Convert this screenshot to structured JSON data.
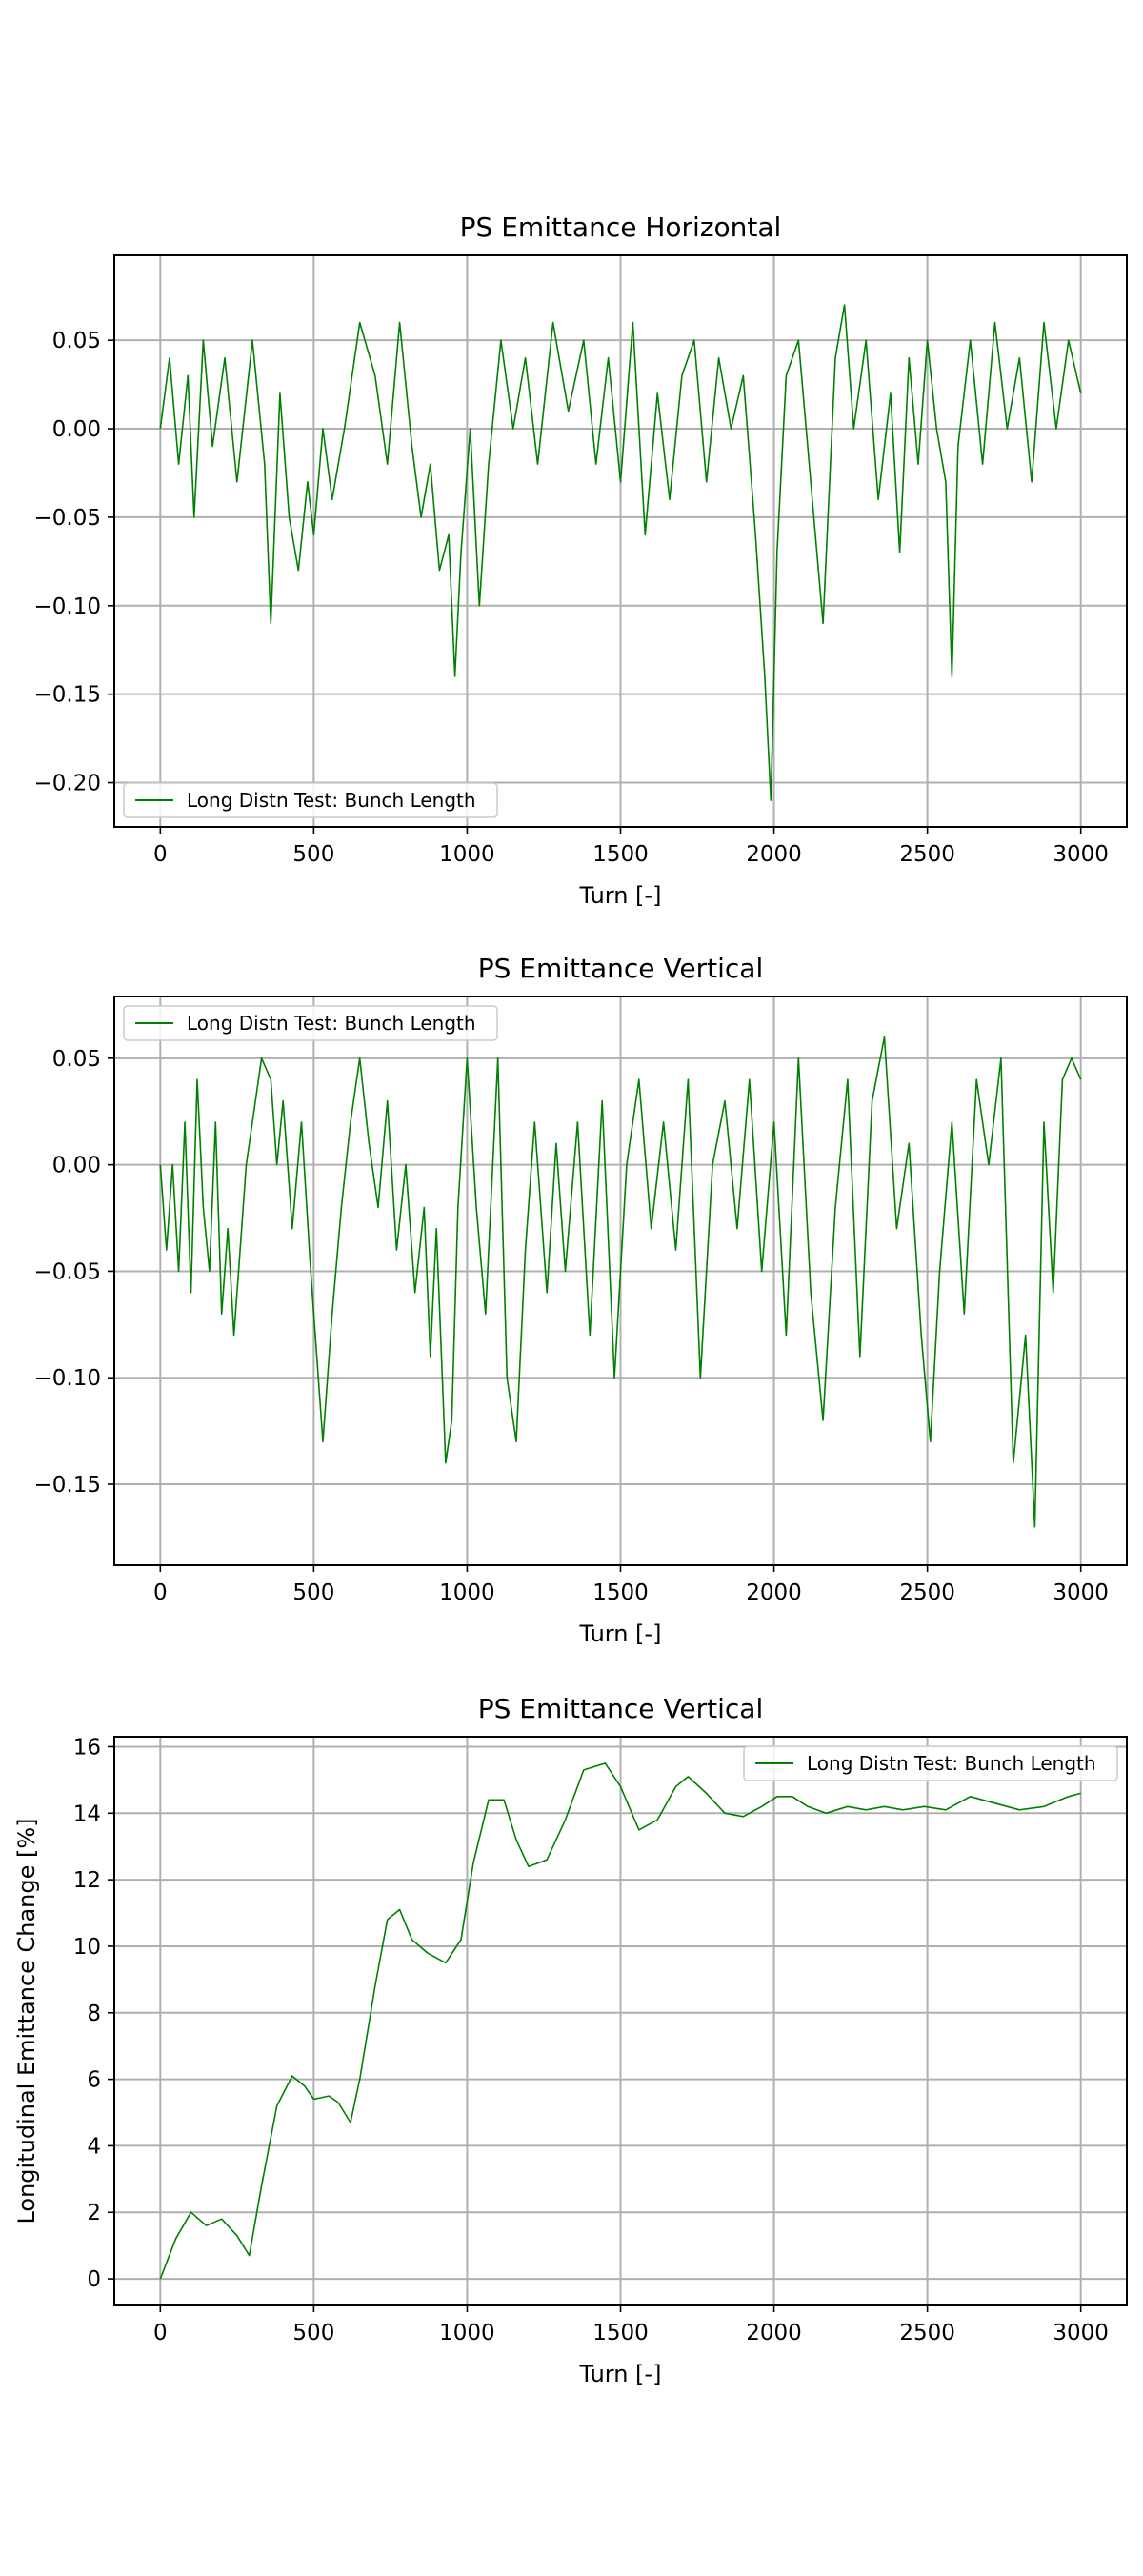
{
  "chart_data": [
    {
      "type": "line",
      "title": "PS Emittance Horizontal",
      "xlabel": "Turn [-]",
      "ylabel": "",
      "xlim": [
        -150,
        3150
      ],
      "ylim": [
        -0.225,
        0.098
      ],
      "xticks": [
        0,
        500,
        1000,
        1500,
        2000,
        2500,
        3000
      ],
      "yticks": [
        -0.2,
        -0.15,
        -0.1,
        -0.05,
        0.0,
        0.05
      ],
      "ytick_labels": [
        "−0.20",
        "−0.15",
        "−0.10",
        "−0.05",
        "0.00",
        "0.05"
      ],
      "grid": true,
      "legend": "lower-left",
      "series": [
        {
          "name": "Long Distn Test: Bunch Length",
          "color": "#008000",
          "x": [
            0,
            30,
            60,
            90,
            110,
            140,
            170,
            210,
            250,
            300,
            340,
            360,
            390,
            420,
            450,
            480,
            500,
            530,
            560,
            600,
            650,
            700,
            740,
            780,
            820,
            850,
            880,
            910,
            940,
            960,
            980,
            1010,
            1040,
            1070,
            1110,
            1150,
            1190,
            1230,
            1280,
            1330,
            1380,
            1420,
            1460,
            1500,
            1540,
            1580,
            1620,
            1660,
            1700,
            1740,
            1780,
            1820,
            1860,
            1900,
            1940,
            1970,
            1990,
            2010,
            2040,
            2080,
            2120,
            2160,
            2200,
            2230,
            2260,
            2300,
            2340,
            2380,
            2410,
            2440,
            2470,
            2500,
            2530,
            2560,
            2580,
            2600,
            2640,
            2680,
            2720,
            2760,
            2800,
            2840,
            2880,
            2920,
            2960,
            3000
          ],
          "y": [
            0.0,
            0.04,
            -0.02,
            0.03,
            -0.05,
            0.05,
            -0.01,
            0.04,
            -0.03,
            0.05,
            -0.02,
            -0.11,
            0.02,
            -0.05,
            -0.08,
            -0.03,
            -0.06,
            0.0,
            -0.04,
            0.0,
            0.06,
            0.03,
            -0.02,
            0.06,
            -0.01,
            -0.05,
            -0.02,
            -0.08,
            -0.06,
            -0.14,
            -0.07,
            0.0,
            -0.1,
            -0.02,
            0.05,
            0.0,
            0.04,
            -0.02,
            0.06,
            0.01,
            0.05,
            -0.02,
            0.04,
            -0.03,
            0.06,
            -0.06,
            0.02,
            -0.04,
            0.03,
            0.05,
            -0.03,
            0.04,
            0.0,
            0.03,
            -0.06,
            -0.14,
            -0.21,
            -0.07,
            0.03,
            0.05,
            -0.03,
            -0.11,
            0.04,
            0.07,
            0.0,
            0.05,
            -0.04,
            0.02,
            -0.07,
            0.04,
            -0.02,
            0.05,
            0.0,
            -0.03,
            -0.14,
            -0.01,
            0.05,
            -0.02,
            0.06,
            0.0,
            0.04,
            -0.03,
            0.06,
            0.0,
            0.05,
            0.02
          ]
        }
      ]
    },
    {
      "type": "line",
      "title": "PS Emittance Vertical",
      "xlabel": "Turn [-]",
      "ylabel": "",
      "xlim": [
        -150,
        3150
      ],
      "ylim": [
        -0.188,
        0.079
      ],
      "xticks": [
        0,
        500,
        1000,
        1500,
        2000,
        2500,
        3000
      ],
      "yticks": [
        -0.15,
        -0.1,
        -0.05,
        0.0,
        0.05
      ],
      "ytick_labels": [
        "−0.15",
        "−0.10",
        "−0.05",
        "0.00",
        "0.05"
      ],
      "grid": true,
      "legend": "upper-left",
      "series": [
        {
          "name": "Long Distn Test: Bunch Length",
          "color": "#008000",
          "x": [
            0,
            20,
            40,
            60,
            80,
            100,
            120,
            140,
            160,
            180,
            200,
            220,
            240,
            260,
            280,
            300,
            330,
            360,
            380,
            400,
            430,
            460,
            490,
            510,
            530,
            560,
            590,
            620,
            650,
            680,
            710,
            740,
            770,
            800,
            830,
            860,
            880,
            900,
            930,
            950,
            970,
            1000,
            1030,
            1060,
            1100,
            1130,
            1160,
            1190,
            1220,
            1260,
            1290,
            1320,
            1360,
            1400,
            1440,
            1480,
            1520,
            1560,
            1600,
            1640,
            1680,
            1720,
            1760,
            1800,
            1840,
            1880,
            1920,
            1960,
            2000,
            2040,
            2080,
            2120,
            2160,
            2200,
            2240,
            2280,
            2320,
            2360,
            2400,
            2440,
            2480,
            2510,
            2540,
            2580,
            2620,
            2660,
            2700,
            2740,
            2780,
            2820,
            2850,
            2880,
            2910,
            2940,
            2970,
            3000
          ],
          "y": [
            0.0,
            -0.04,
            0.0,
            -0.05,
            0.02,
            -0.06,
            0.04,
            -0.02,
            -0.05,
            0.02,
            -0.07,
            -0.03,
            -0.08,
            -0.04,
            0.0,
            0.02,
            0.05,
            0.04,
            0.0,
            0.03,
            -0.03,
            0.02,
            -0.05,
            -0.09,
            -0.13,
            -0.07,
            -0.02,
            0.02,
            0.05,
            0.01,
            -0.02,
            0.03,
            -0.04,
            0.0,
            -0.06,
            -0.02,
            -0.09,
            -0.03,
            -0.14,
            -0.12,
            -0.02,
            0.05,
            -0.02,
            -0.07,
            0.05,
            -0.1,
            -0.13,
            -0.04,
            0.02,
            -0.06,
            0.01,
            -0.05,
            0.02,
            -0.08,
            0.03,
            -0.1,
            0.0,
            0.04,
            -0.03,
            0.02,
            -0.04,
            0.04,
            -0.1,
            0.0,
            0.03,
            -0.03,
            0.04,
            -0.05,
            0.02,
            -0.08,
            0.05,
            -0.06,
            -0.12,
            -0.02,
            0.04,
            -0.09,
            0.03,
            0.06,
            -0.03,
            0.01,
            -0.08,
            -0.13,
            -0.05,
            0.02,
            -0.07,
            0.04,
            0.0,
            0.05,
            -0.14,
            -0.08,
            -0.17,
            0.02,
            -0.06,
            0.04,
            0.05,
            0.04
          ]
        }
      ]
    },
    {
      "type": "line",
      "title": "PS Emittance Vertical",
      "xlabel": "Turn [-]",
      "ylabel": "Longitudinal Emittance Change [%]",
      "xlim": [
        -150,
        3150
      ],
      "ylim": [
        -0.8,
        16.3
      ],
      "xticks": [
        0,
        500,
        1000,
        1500,
        2000,
        2500,
        3000
      ],
      "yticks": [
        0,
        2,
        4,
        6,
        8,
        10,
        12,
        14,
        16
      ],
      "ytick_labels": [
        "0",
        "2",
        "4",
        "6",
        "8",
        "10",
        "12",
        "14",
        "16"
      ],
      "grid": true,
      "legend": "upper-right",
      "series": [
        {
          "name": "Long Distn Test: Bunch Length",
          "color": "#008000",
          "x": [
            0,
            50,
            100,
            150,
            200,
            250,
            290,
            330,
            380,
            430,
            470,
            500,
            550,
            580,
            620,
            650,
            700,
            740,
            780,
            820,
            870,
            930,
            980,
            1020,
            1070,
            1120,
            1160,
            1200,
            1260,
            1320,
            1380,
            1450,
            1500,
            1560,
            1620,
            1680,
            1720,
            1780,
            1840,
            1900,
            1960,
            2010,
            2060,
            2110,
            2170,
            2240,
            2300,
            2360,
            2420,
            2490,
            2560,
            2640,
            2720,
            2800,
            2880,
            2960,
            3000
          ],
          "y": [
            0.0,
            1.2,
            2.0,
            1.6,
            1.8,
            1.3,
            0.7,
            2.8,
            5.2,
            6.1,
            5.8,
            5.4,
            5.5,
            5.3,
            4.7,
            6.0,
            8.8,
            10.8,
            11.1,
            10.2,
            9.8,
            9.5,
            10.2,
            12.5,
            14.4,
            14.4,
            13.2,
            12.4,
            12.6,
            13.8,
            15.3,
            15.5,
            14.8,
            13.5,
            13.8,
            14.8,
            15.1,
            14.6,
            14.0,
            13.9,
            14.2,
            14.5,
            14.5,
            14.2,
            14.0,
            14.2,
            14.1,
            14.2,
            14.1,
            14.2,
            14.1,
            14.5,
            14.3,
            14.1,
            14.2,
            14.5,
            14.6
          ]
        }
      ]
    }
  ]
}
